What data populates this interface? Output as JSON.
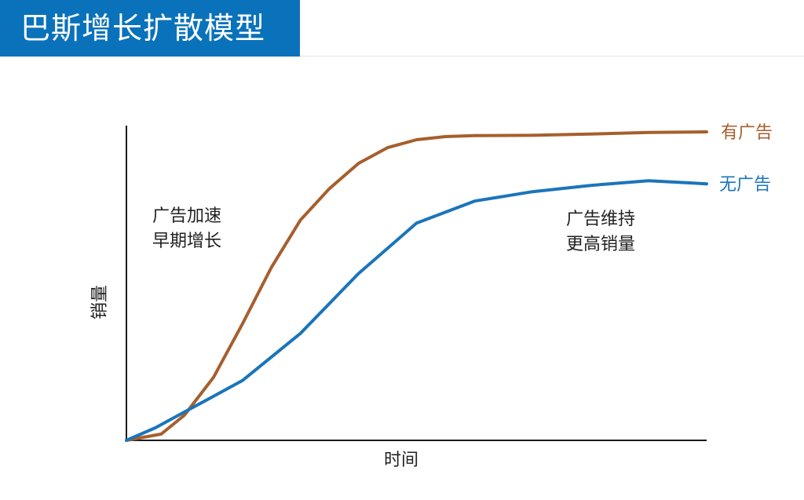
{
  "header": {
    "title": "巴斯增长扩散模型",
    "bg_color": "#0a72ba"
  },
  "chart_data": {
    "type": "line",
    "title": "",
    "xlabel": "时间",
    "ylabel": "销量",
    "xlim": [
      0,
      100
    ],
    "ylim": [
      0,
      100
    ],
    "grid": false,
    "legend": "right-end-labels",
    "series": [
      {
        "name": "有广告",
        "color": "#a65f2d",
        "points": [
          [
            0,
            0
          ],
          [
            6,
            2
          ],
          [
            10,
            8
          ],
          [
            15,
            20
          ],
          [
            20,
            37
          ],
          [
            25,
            55
          ],
          [
            30,
            70
          ],
          [
            35,
            80
          ],
          [
            40,
            88
          ],
          [
            45,
            93
          ],
          [
            50,
            95.5
          ],
          [
            55,
            96.5
          ],
          [
            60,
            96.8
          ],
          [
            70,
            96.9
          ],
          [
            80,
            97.3
          ],
          [
            90,
            97.8
          ],
          [
            100,
            98
          ]
        ]
      },
      {
        "name": "无广告",
        "color": "#1a75ba",
        "points": [
          [
            0,
            0
          ],
          [
            5,
            4
          ],
          [
            10,
            9
          ],
          [
            15,
            14
          ],
          [
            20,
            19
          ],
          [
            30,
            34
          ],
          [
            40,
            53
          ],
          [
            50,
            69
          ],
          [
            60,
            76
          ],
          [
            70,
            79
          ],
          [
            80,
            81
          ],
          [
            90,
            82.5
          ],
          [
            100,
            81.5
          ]
        ]
      }
    ],
    "annotations": [
      {
        "lines": [
          "广告加速",
          "早期增长"
        ]
      },
      {
        "lines": [
          "广告维持",
          "更高销量"
        ]
      }
    ]
  }
}
